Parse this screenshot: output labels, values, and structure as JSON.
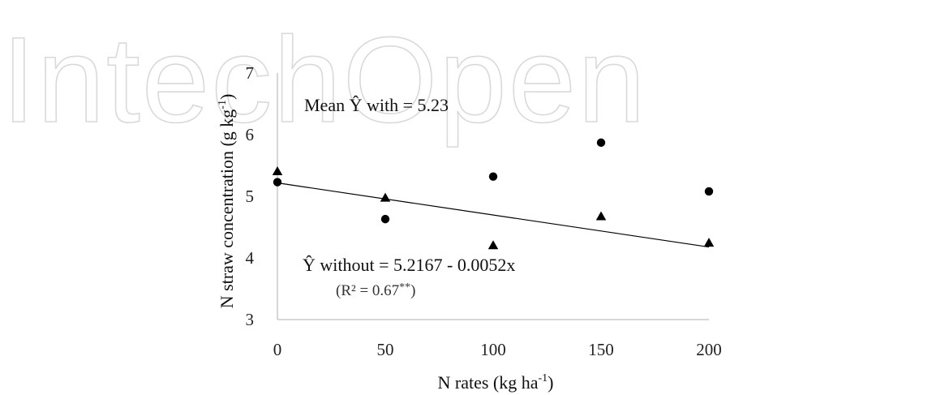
{
  "watermark": "IntechOpen",
  "chart_data": {
    "type": "scatter",
    "xlabel": "N rates (kg ha",
    "xlabel_sup": "-1",
    "xlabel_end": ")",
    "ylabel": "N straw concentration (g kg",
    "ylabel_sup": "-1",
    "ylabel_end": ")",
    "xlim": [
      0,
      200
    ],
    "ylim": [
      3,
      7
    ],
    "x_ticks": [
      0,
      50,
      100,
      150,
      200
    ],
    "y_ticks": [
      3,
      4,
      5,
      6,
      7
    ],
    "grid": false,
    "series": [
      {
        "marker": "circle",
        "x": [
          0,
          50,
          100,
          150,
          200
        ],
        "y": [
          5.23,
          4.63,
          5.32,
          5.87,
          5.08
        ]
      },
      {
        "marker": "triangle",
        "x": [
          0,
          50,
          100,
          150,
          200
        ],
        "y": [
          5.4,
          4.97,
          4.2,
          4.67,
          4.24
        ]
      }
    ],
    "trendline": {
      "intercept": 5.2167,
      "slope": -0.0052,
      "x_range": [
        0,
        200
      ]
    },
    "annotations": {
      "mean_with": "Mean Ŷ with = 5.23",
      "eq_without": "Ŷ without  = 5.2167 - 0.0052x",
      "r2_prefix": "(R² = 0.67",
      "r2_stars": "**",
      "r2_suffix": ")"
    },
    "colors": {
      "markers": "#000000",
      "trendline": "#000000",
      "axis": "#bfbfbf"
    }
  }
}
